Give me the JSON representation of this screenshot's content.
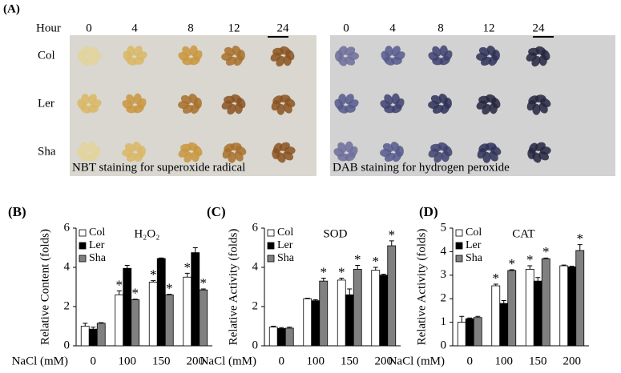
{
  "panel_a": {
    "label": "(A)",
    "hour_label": "Hour",
    "hours": [
      "0",
      "4",
      "8",
      "12",
      "24"
    ],
    "rows": [
      "Col",
      "Ler",
      "Sha"
    ],
    "captions": [
      "NBT staining for superoxide radical",
      "DAB staining for hydrogen peroxide"
    ]
  },
  "chart_data": [
    {
      "type": "bar",
      "label": "(B)",
      "title": "H₂O₂",
      "ylabel": "Relative Content (folds)",
      "xlabel": "NaCl (mM)",
      "categories": [
        "0",
        "100",
        "150",
        "200"
      ],
      "ylim": [
        0,
        6
      ],
      "yticks": [
        0,
        2,
        4,
        6
      ],
      "legend": "upper left",
      "series": [
        {
          "name": "Col",
          "color": "#ffffff",
          "values": [
            1.0,
            2.6,
            3.25,
            3.5
          ],
          "errors": [
            0.15,
            0.2,
            0.07,
            0.2
          ],
          "significance": [
            null,
            "*",
            "*",
            "*"
          ]
        },
        {
          "name": "Ler",
          "color": "#000000",
          "values": [
            0.85,
            3.95,
            4.45,
            4.75
          ],
          "errors": [
            0.1,
            0.15,
            0.03,
            0.25
          ],
          "significance": [
            null,
            null,
            null,
            null
          ]
        },
        {
          "name": "Sha",
          "color": "#808080",
          "values": [
            1.15,
            2.35,
            2.6,
            2.85
          ],
          "errors": [
            0.03,
            0.03,
            0.03,
            0.05
          ],
          "significance": [
            null,
            "*",
            "*",
            "*"
          ]
        }
      ]
    },
    {
      "type": "bar",
      "label": "(C)",
      "title": "SOD",
      "ylabel": "Relative Activity (folds)",
      "xlabel": "NaCl (mM)",
      "categories": [
        "0",
        "100",
        "150",
        "200"
      ],
      "ylim": [
        0,
        6
      ],
      "yticks": [
        0,
        2,
        4,
        6
      ],
      "legend": "upper left",
      "series": [
        {
          "name": "Col",
          "color": "#ffffff",
          "values": [
            0.95,
            2.4,
            3.35,
            3.85
          ],
          "errors": [
            0.05,
            0.03,
            0.1,
            0.15
          ],
          "significance": [
            null,
            null,
            "*",
            "*"
          ]
        },
        {
          "name": "Ler",
          "color": "#000000",
          "values": [
            0.88,
            2.3,
            2.6,
            3.6
          ],
          "errors": [
            0.05,
            0.05,
            0.3,
            0.05
          ],
          "significance": [
            null,
            null,
            null,
            null
          ]
        },
        {
          "name": "Sha",
          "color": "#808080",
          "values": [
            0.9,
            3.3,
            3.9,
            5.1
          ],
          "errors": [
            0.05,
            0.15,
            0.2,
            0.25
          ],
          "significance": [
            null,
            "*",
            "*",
            "*"
          ]
        }
      ]
    },
    {
      "type": "bar",
      "label": "(D)",
      "title": "CAT",
      "ylabel": "Relative Activity (folds)",
      "xlabel": "NaCl (mM)",
      "categories": [
        "0",
        "100",
        "150",
        "200"
      ],
      "ylim": [
        0,
        5
      ],
      "yticks": [
        0,
        1,
        2,
        3,
        4,
        5
      ],
      "legend": "upper left",
      "series": [
        {
          "name": "Col",
          "color": "#ffffff",
          "values": [
            1.0,
            2.55,
            3.25,
            3.4
          ],
          "errors": [
            0.25,
            0.07,
            0.15,
            0.03
          ],
          "significance": [
            null,
            "*",
            "*",
            null
          ]
        },
        {
          "name": "Ler",
          "color": "#000000",
          "values": [
            1.15,
            1.8,
            2.75,
            3.35
          ],
          "errors": [
            0.03,
            0.12,
            0.15,
            0.03
          ],
          "significance": [
            null,
            null,
            null,
            null
          ]
        },
        {
          "name": "Sha",
          "color": "#808080",
          "values": [
            1.2,
            3.2,
            3.7,
            4.05
          ],
          "errors": [
            0.05,
            0.03,
            0.03,
            0.25
          ],
          "significance": [
            null,
            "*",
            "*",
            "*"
          ]
        }
      ]
    }
  ]
}
